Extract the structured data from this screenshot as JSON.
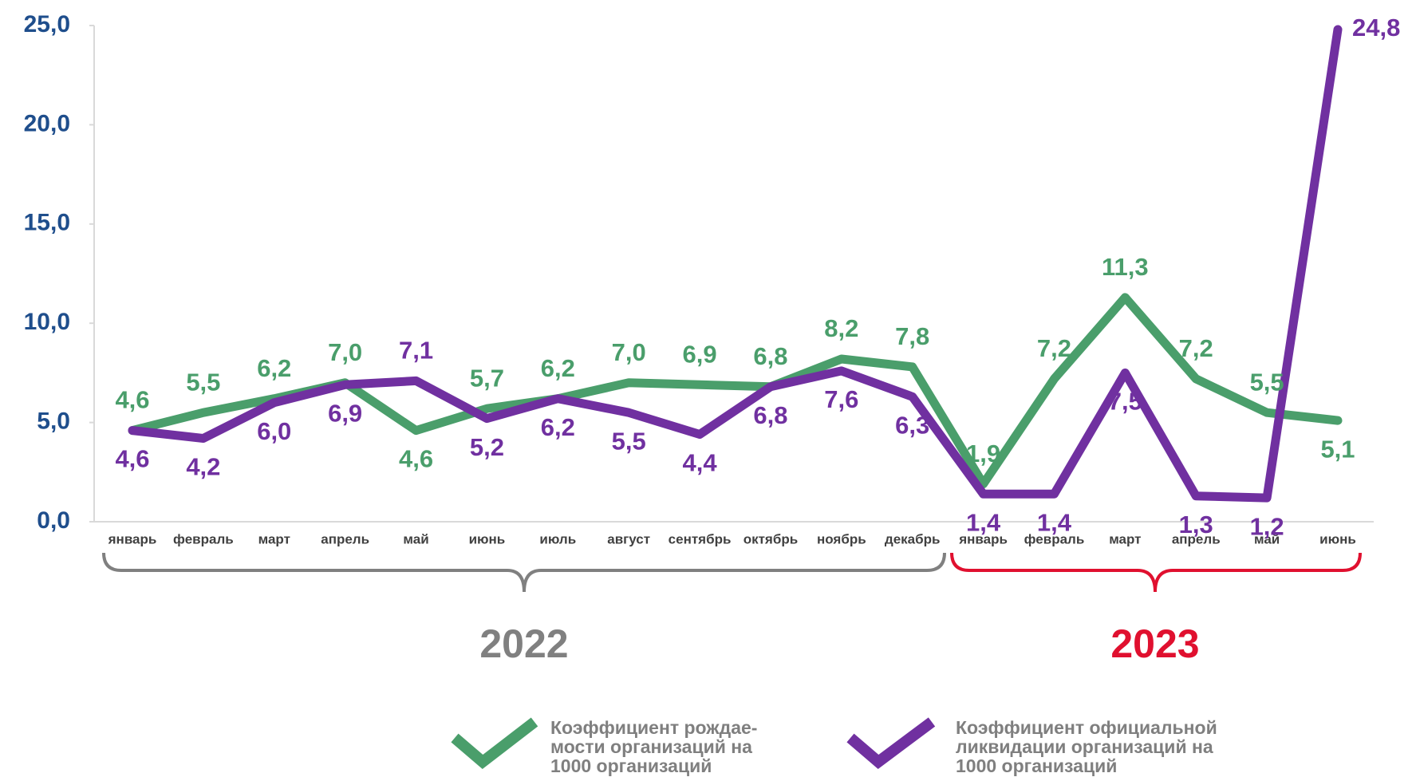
{
  "chart_data": {
    "type": "line",
    "categories": [
      "январь",
      "февраль",
      "март",
      "апрель",
      "май",
      "июнь",
      "июль",
      "август",
      "сентябрь",
      "октябрь",
      "ноябрь",
      "декабрь",
      "январь",
      "февраль",
      "март",
      "апрель",
      "май",
      "июнь"
    ],
    "series": [
      {
        "name": "Коэффициент рождае-\nмости организаций на\n1000 организаций",
        "color": "#4a9e6b",
        "values": [
          4.6,
          5.5,
          6.2,
          7.0,
          4.6,
          5.7,
          6.2,
          7.0,
          6.9,
          6.8,
          8.2,
          7.8,
          1.9,
          7.2,
          11.3,
          7.2,
          5.5,
          5.1
        ],
        "value_labels": [
          "4,6",
          "5,5",
          "6,2",
          "7,0",
          "4,6",
          "5,7",
          "6,2",
          "7,0",
          "6,9",
          "6,8",
          "8,2",
          "7,8",
          "1,9",
          "7,2",
          "11,3",
          "7,2",
          "5,5",
          "5,1"
        ]
      },
      {
        "name": "Коэффициент официальной\nликвидации организаций на\n1000 организаций",
        "color": "#7030a0",
        "values": [
          4.6,
          4.2,
          6.0,
          6.9,
          7.1,
          5.2,
          6.2,
          5.5,
          4.4,
          6.8,
          7.6,
          6.3,
          1.4,
          1.4,
          7.5,
          1.3,
          1.2,
          24.8
        ],
        "value_labels": [
          "4,6",
          "4,2",
          "6,0",
          "6,9",
          "7,1",
          "5,2",
          "6,2",
          "5,5",
          "4,4",
          "6,8",
          "7,6",
          "6,3",
          "1,4",
          "1,4",
          "7,5",
          "1,3",
          "1,2",
          "24,8"
        ]
      }
    ],
    "ylim": [
      0,
      25
    ],
    "yticks": [
      {
        "value": 0,
        "label": "0,0"
      },
      {
        "value": 5,
        "label": "5,0"
      },
      {
        "value": 10,
        "label": "10,0"
      },
      {
        "value": 15,
        "label": "15,0"
      },
      {
        "value": 20,
        "label": "20,0"
      },
      {
        "value": 25,
        "label": "25,0"
      }
    ],
    "annotations": [
      "2022",
      "2023"
    ]
  }
}
